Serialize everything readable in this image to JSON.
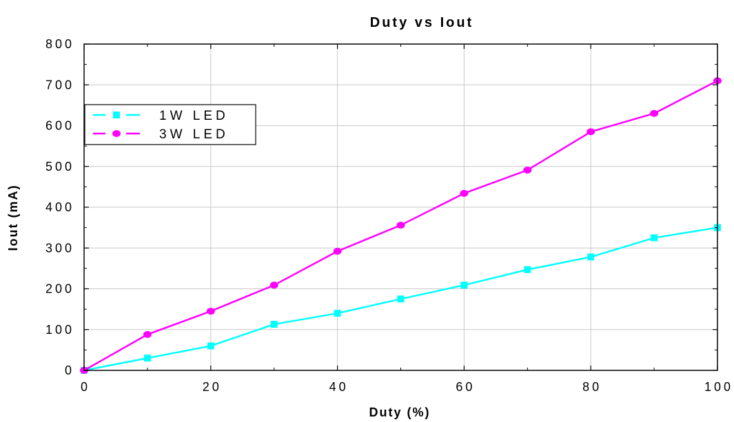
{
  "chart_data": {
    "type": "line",
    "title": "Duty vs Iout",
    "xlabel": "Duty (%)",
    "ylabel": "Iout (mA)",
    "xlim": [
      0,
      100
    ],
    "ylim": [
      0,
      800
    ],
    "x_ticks": [
      0,
      20,
      40,
      60,
      80,
      100
    ],
    "x_tick_labels": [
      "0",
      "20",
      "40",
      "60",
      "80",
      "100"
    ],
    "y_ticks": [
      0,
      100,
      200,
      300,
      400,
      500,
      600,
      700,
      800
    ],
    "y_tick_labels": [
      "0",
      "100",
      "200",
      "300",
      "400",
      "500",
      "600",
      "700",
      "800"
    ],
    "grid": true,
    "legend_position": "top-left",
    "series": [
      {
        "name": "1W LED",
        "color": "#00ffff",
        "marker": "square",
        "x": [
          0,
          10,
          20,
          30,
          40,
          50,
          60,
          70,
          80,
          90,
          100
        ],
        "y": [
          0,
          30,
          60,
          113,
          140,
          175,
          209,
          247,
          278,
          325,
          350
        ]
      },
      {
        "name": "3W LED",
        "color": "#ff00ff",
        "marker": "circle",
        "x": [
          0,
          10,
          20,
          30,
          40,
          50,
          60,
          70,
          80,
          90,
          100
        ],
        "y": [
          0,
          88,
          145,
          209,
          292,
          356,
          434,
          491,
          585,
          630,
          710
        ]
      }
    ]
  }
}
